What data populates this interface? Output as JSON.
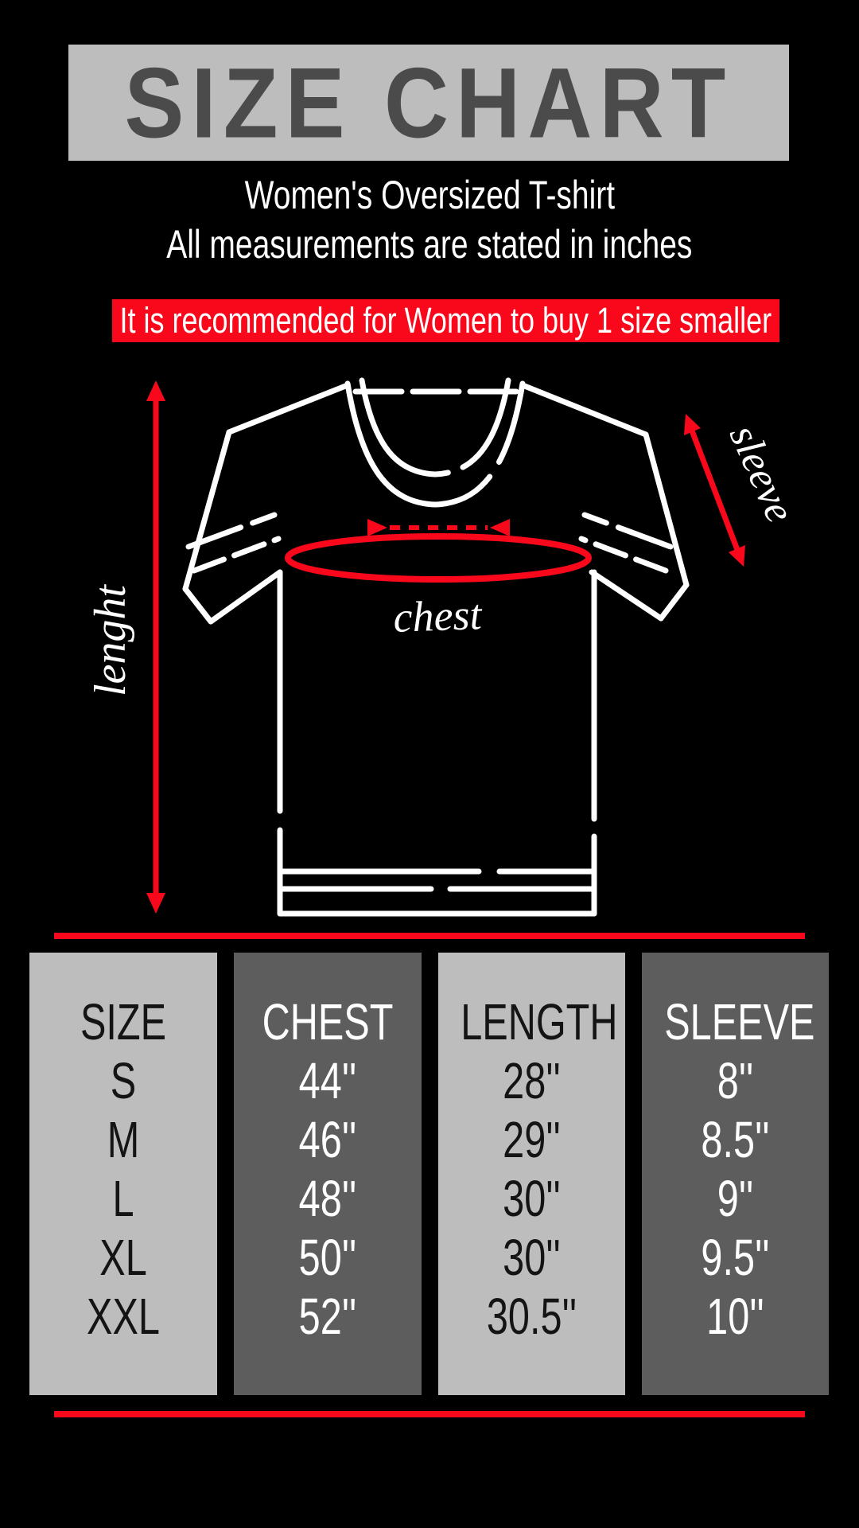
{
  "theme": {
    "black": "#000000",
    "banner-gray": "#bdbdbd",
    "dark-gray": "#5d5d5d",
    "title-gray": "#4b4b4b",
    "accent": "#f8081a",
    "table-text-dark": "#141414"
  },
  "header": {
    "title": "SIZE CHART"
  },
  "subtitle": {
    "line1": "Women's Oversized T-shirt",
    "line2": "All measurements are stated in inches"
  },
  "notice": {
    "text": "It is recommended for Women to buy 1 size smaller"
  },
  "diagram": {
    "labels": {
      "length": "lenght",
      "sleeve": "sleeve",
      "chest": "chest"
    }
  },
  "chart_data": {
    "type": "table",
    "title": "SIZE CHART",
    "units": "inches",
    "columns": [
      {
        "header": "SIZE",
        "variant": "light",
        "values": [
          "S",
          "M",
          "L",
          "XL",
          "XXL"
        ]
      },
      {
        "header": "CHEST",
        "variant": "dark",
        "values": [
          "44''",
          "46''",
          "48''",
          "50''",
          "52''"
        ]
      },
      {
        "header": "LENGTH",
        "variant": "light",
        "values": [
          "28''",
          "29''",
          "30''",
          "30''",
          "30.5''"
        ]
      },
      {
        "header": "SLEEVE",
        "variant": "dark",
        "values": [
          "8''",
          "8.5''",
          "9''",
          "9.5''",
          "10''"
        ]
      }
    ]
  }
}
